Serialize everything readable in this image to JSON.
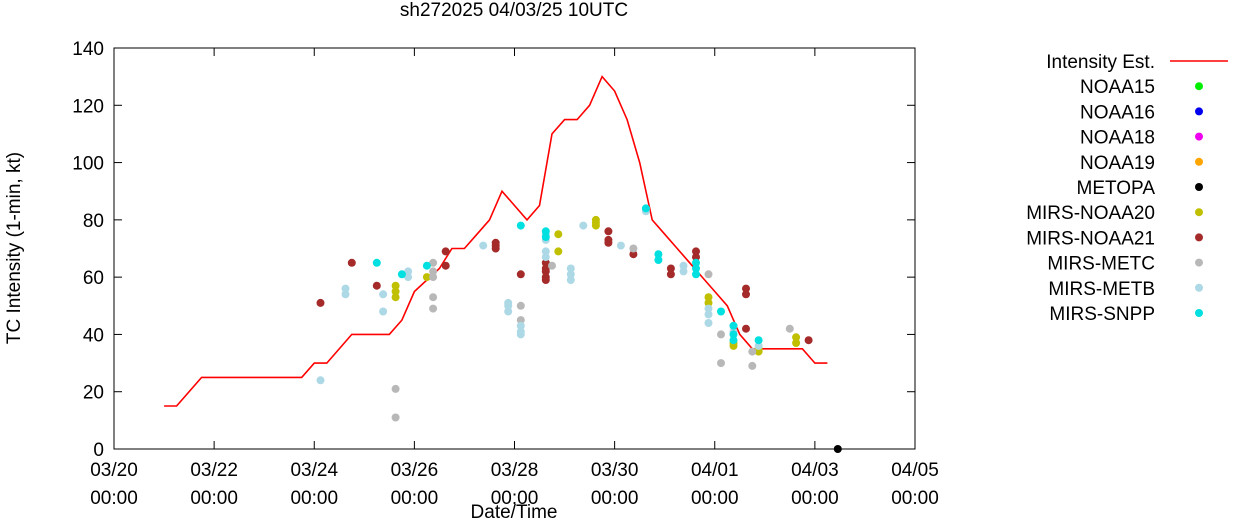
{
  "chart_data": {
    "type": "scatter",
    "title": "sh272025 04/03/25 10UTC",
    "xlabel": "Date/Time",
    "ylabel": "TC Intensity (1-min, kt)",
    "x_unit": "date",
    "xlim": [
      "2025-03-20T00:00",
      "2025-04-05T00:00"
    ],
    "ylim": [
      0,
      140
    ],
    "yticks": [
      0,
      20,
      40,
      60,
      80,
      100,
      120,
      140
    ],
    "xticks": [
      {
        "date": "2025-03-20T00:00",
        "line1": "03/20",
        "line2": "00:00"
      },
      {
        "date": "2025-03-22T00:00",
        "line1": "03/22",
        "line2": "00:00"
      },
      {
        "date": "2025-03-24T00:00",
        "line1": "03/24",
        "line2": "00:00"
      },
      {
        "date": "2025-03-26T00:00",
        "line1": "03/26",
        "line2": "00:00"
      },
      {
        "date": "2025-03-28T00:00",
        "line1": "03/28",
        "line2": "00:00"
      },
      {
        "date": "2025-03-30T00:00",
        "line1": "03/30",
        "line2": "00:00"
      },
      {
        "date": "2025-04-01T00:00",
        "line1": "04/01",
        "line2": "00:00"
      },
      {
        "date": "2025-04-03T00:00",
        "line1": "04/03",
        "line2": "00:00"
      },
      {
        "date": "2025-04-05T00:00",
        "line1": "04/05",
        "line2": "00:00"
      }
    ],
    "grid": false,
    "legend_position": "right",
    "series": [
      {
        "name": "Intensity Est.",
        "kind": "line",
        "color": "#ff0000",
        "points": [
          [
            "2025-03-21T00:00",
            15
          ],
          [
            "2025-03-21T06:00",
            15
          ],
          [
            "2025-03-21T18:00",
            25
          ],
          [
            "2025-03-22T12:00",
            25
          ],
          [
            "2025-03-23T12:00",
            25
          ],
          [
            "2025-03-23T18:00",
            25
          ],
          [
            "2025-03-24T00:00",
            30
          ],
          [
            "2025-03-24T06:00",
            30
          ],
          [
            "2025-03-24T18:00",
            40
          ],
          [
            "2025-03-25T12:00",
            40
          ],
          [
            "2025-03-25T18:00",
            45
          ],
          [
            "2025-03-26T00:00",
            55
          ],
          [
            "2025-03-26T12:00",
            63
          ],
          [
            "2025-03-26T18:00",
            70
          ],
          [
            "2025-03-27T00:00",
            70
          ],
          [
            "2025-03-27T06:00",
            75
          ],
          [
            "2025-03-27T12:00",
            80
          ],
          [
            "2025-03-27T18:00",
            90
          ],
          [
            "2025-03-28T06:00",
            80
          ],
          [
            "2025-03-28T12:00",
            85
          ],
          [
            "2025-03-28T18:00",
            110
          ],
          [
            "2025-03-29T00:00",
            115
          ],
          [
            "2025-03-29T06:00",
            115
          ],
          [
            "2025-03-29T12:00",
            120
          ],
          [
            "2025-03-29T18:00",
            130
          ],
          [
            "2025-03-30T00:00",
            125
          ],
          [
            "2025-03-30T06:00",
            115
          ],
          [
            "2025-03-30T12:00",
            100
          ],
          [
            "2025-03-30T18:00",
            80
          ],
          [
            "2025-03-31T00:00",
            75
          ],
          [
            "2025-03-31T06:00",
            70
          ],
          [
            "2025-03-31T12:00",
            65
          ],
          [
            "2025-03-31T18:00",
            60
          ],
          [
            "2025-04-01T00:00",
            55
          ],
          [
            "2025-04-01T06:00",
            50
          ],
          [
            "2025-04-01T12:00",
            40
          ],
          [
            "2025-04-01T18:00",
            35
          ],
          [
            "2025-04-02T00:00",
            35
          ],
          [
            "2025-04-02T12:00",
            35
          ],
          [
            "2025-04-02T18:00",
            35
          ],
          [
            "2025-04-03T00:00",
            30
          ],
          [
            "2025-04-03T06:00",
            30
          ]
        ]
      },
      {
        "name": "NOAA15",
        "kind": "scatter",
        "color": "#00ee00",
        "points": []
      },
      {
        "name": "NOAA16",
        "kind": "scatter",
        "color": "#0000ee",
        "points": []
      },
      {
        "name": "NOAA18",
        "kind": "scatter",
        "color": "#ee00ee",
        "points": []
      },
      {
        "name": "NOAA19",
        "kind": "scatter",
        "color": "#ffa500",
        "points": []
      },
      {
        "name": "METOPA",
        "kind": "scatter",
        "color": "#000000",
        "points": [
          [
            "2025-04-03T11:00",
            0
          ]
        ]
      },
      {
        "name": "MIRS-NOAA20",
        "kind": "scatter",
        "color": "#c0c000",
        "points": [
          [
            "2025-03-25T15:00",
            57
          ],
          [
            "2025-03-25T15:00",
            55
          ],
          [
            "2025-03-25T15:00",
            53
          ],
          [
            "2025-03-26T06:00",
            60
          ],
          [
            "2025-03-28T21:00",
            75
          ],
          [
            "2025-03-28T21:00",
            69
          ],
          [
            "2025-03-29T15:00",
            80
          ],
          [
            "2025-03-29T15:00",
            79
          ],
          [
            "2025-03-29T15:00",
            78
          ],
          [
            "2025-03-31T21:00",
            51
          ],
          [
            "2025-03-31T21:00",
            53
          ],
          [
            "2025-04-01T09:00",
            36
          ],
          [
            "2025-04-01T09:00",
            37
          ],
          [
            "2025-04-01T21:00",
            34
          ],
          [
            "2025-04-01T21:00",
            35
          ],
          [
            "2025-04-02T15:00",
            39
          ],
          [
            "2025-04-02T15:00",
            37
          ]
        ]
      },
      {
        "name": "MIRS-NOAA21",
        "kind": "scatter",
        "color": "#a52a2a",
        "points": [
          [
            "2025-03-24T03:00",
            51
          ],
          [
            "2025-03-24T18:00",
            65
          ],
          [
            "2025-03-25T06:00",
            57
          ],
          [
            "2025-03-26T15:00",
            69
          ],
          [
            "2025-03-26T15:00",
            64
          ],
          [
            "2025-03-27T15:00",
            72
          ],
          [
            "2025-03-27T15:00",
            70
          ],
          [
            "2025-03-27T15:00",
            71
          ],
          [
            "2025-03-28T15:00",
            65
          ],
          [
            "2025-03-28T15:00",
            62
          ],
          [
            "2025-03-28T15:00",
            63
          ],
          [
            "2025-03-28T15:00",
            60
          ],
          [
            "2025-03-28T15:00",
            59
          ],
          [
            "2025-03-28T03:00",
            61
          ],
          [
            "2025-03-29T21:00",
            76
          ],
          [
            "2025-03-29T21:00",
            73
          ],
          [
            "2025-03-29T21:00",
            72
          ],
          [
            "2025-03-30T09:00",
            68
          ],
          [
            "2025-03-31T03:00",
            63
          ],
          [
            "2025-03-31T03:00",
            61
          ],
          [
            "2025-03-31T15:00",
            69
          ],
          [
            "2025-03-31T15:00",
            67
          ],
          [
            "2025-04-01T15:00",
            56
          ],
          [
            "2025-04-01T15:00",
            54
          ],
          [
            "2025-04-01T15:00",
            42
          ],
          [
            "2025-04-02T21:00",
            38
          ]
        ]
      },
      {
        "name": "MIRS-METC",
        "kind": "scatter",
        "color": "#b8b8b8",
        "points": [
          [
            "2025-03-25T15:00",
            21
          ],
          [
            "2025-03-25T15:00",
            11
          ],
          [
            "2025-03-26T09:00",
            53
          ],
          [
            "2025-03-26T09:00",
            49
          ],
          [
            "2025-03-26T09:00",
            65
          ],
          [
            "2025-03-26T09:00",
            62
          ],
          [
            "2025-03-26T09:00",
            60
          ],
          [
            "2025-03-28T03:00",
            50
          ],
          [
            "2025-03-28T03:00",
            45
          ],
          [
            "2025-03-28T18:00",
            64
          ],
          [
            "2025-03-30T09:00",
            70
          ],
          [
            "2025-03-31T21:00",
            61
          ],
          [
            "2025-04-01T03:00",
            40
          ],
          [
            "2025-04-01T03:00",
            30
          ],
          [
            "2025-04-01T18:00",
            29
          ],
          [
            "2025-04-01T18:00",
            34
          ],
          [
            "2025-04-02T12:00",
            42
          ]
        ]
      },
      {
        "name": "MIRS-METB",
        "kind": "scatter",
        "color": "#add8e6",
        "points": [
          [
            "2025-03-24T03:00",
            24
          ],
          [
            "2025-03-24T15:00",
            56
          ],
          [
            "2025-03-24T15:00",
            54
          ],
          [
            "2025-03-25T09:00",
            54
          ],
          [
            "2025-03-25T09:00",
            48
          ],
          [
            "2025-03-25T21:00",
            62
          ],
          [
            "2025-03-25T21:00",
            60
          ],
          [
            "2025-03-27T09:00",
            71
          ],
          [
            "2025-03-27T21:00",
            51
          ],
          [
            "2025-03-27T21:00",
            50
          ],
          [
            "2025-03-27T21:00",
            48
          ],
          [
            "2025-03-28T03:00",
            43
          ],
          [
            "2025-03-28T03:00",
            41
          ],
          [
            "2025-03-28T03:00",
            40
          ],
          [
            "2025-03-28T15:00",
            75
          ],
          [
            "2025-03-28T15:00",
            73
          ],
          [
            "2025-03-28T15:00",
            69
          ],
          [
            "2025-03-28T15:00",
            67
          ],
          [
            "2025-03-29T03:00",
            63
          ],
          [
            "2025-03-29T03:00",
            61
          ],
          [
            "2025-03-29T03:00",
            59
          ],
          [
            "2025-03-29T09:00",
            78
          ],
          [
            "2025-03-30T03:00",
            71
          ],
          [
            "2025-03-30T15:00",
            84
          ],
          [
            "2025-03-30T15:00",
            83
          ],
          [
            "2025-03-31T09:00",
            64
          ],
          [
            "2025-03-31T09:00",
            62
          ],
          [
            "2025-03-31T21:00",
            49
          ],
          [
            "2025-03-31T21:00",
            47
          ],
          [
            "2025-03-31T21:00",
            44
          ],
          [
            "2025-04-01T09:00",
            43
          ],
          [
            "2025-04-01T09:00",
            41
          ],
          [
            "2025-04-01T21:00",
            36
          ]
        ]
      },
      {
        "name": "MIRS-SNPP",
        "kind": "scatter",
        "color": "#00e0e0",
        "points": [
          [
            "2025-03-25T06:00",
            65
          ],
          [
            "2025-03-25T18:00",
            61
          ],
          [
            "2025-03-26T06:00",
            64
          ],
          [
            "2025-03-28T03:00",
            78
          ],
          [
            "2025-03-28T15:00",
            76
          ],
          [
            "2025-03-28T15:00",
            74
          ],
          [
            "2025-03-30T15:00",
            84
          ],
          [
            "2025-03-30T21:00",
            68
          ],
          [
            "2025-03-30T21:00",
            66
          ],
          [
            "2025-03-31T15:00",
            65
          ],
          [
            "2025-03-31T15:00",
            63
          ],
          [
            "2025-03-31T15:00",
            61
          ],
          [
            "2025-04-01T03:00",
            48
          ],
          [
            "2025-04-01T09:00",
            43
          ],
          [
            "2025-04-01T09:00",
            40
          ],
          [
            "2025-04-01T09:00",
            38
          ],
          [
            "2025-04-01T21:00",
            38
          ]
        ]
      }
    ]
  }
}
